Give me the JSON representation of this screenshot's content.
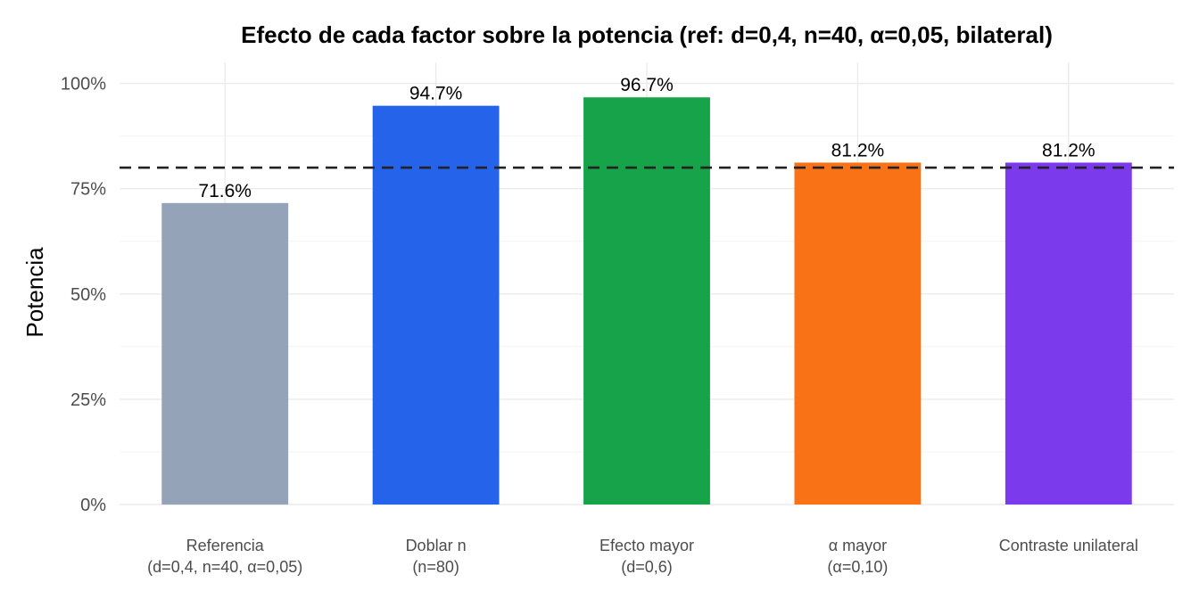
{
  "chart_data": {
    "type": "bar",
    "title": "Efecto de cada factor sobre la potencia (ref: d=0,4, n=40, α=0,05, bilateral)",
    "xlabel": "",
    "ylabel": "Potencia",
    "ylim": [
      0,
      1.05
    ],
    "yticks": [
      0,
      0.25,
      0.5,
      0.75,
      1.0
    ],
    "ytick_labels": [
      "0%",
      "25%",
      "50%",
      "75%",
      "100%"
    ],
    "categories": [
      [
        "Referencia",
        "(d=0,4, n=40, α=0,05)"
      ],
      [
        "Doblar n",
        "(n=80)"
      ],
      [
        "Efecto mayor",
        "(d=0,6)"
      ],
      [
        "α mayor",
        "(α=0,10)"
      ],
      [
        "Contraste unilateral"
      ]
    ],
    "values": [
      0.716,
      0.947,
      0.967,
      0.812,
      0.812
    ],
    "value_labels": [
      "71.6%",
      "94.7%",
      "96.7%",
      "81.2%",
      "81.2%"
    ],
    "colors": [
      "#94A3B8",
      "#2563EB",
      "#16A34A",
      "#F97316",
      "#7C3AED"
    ],
    "reference_line": {
      "y": 0.8,
      "style": "dashed",
      "color": "#222222"
    },
    "grid": true,
    "legend": "none"
  }
}
